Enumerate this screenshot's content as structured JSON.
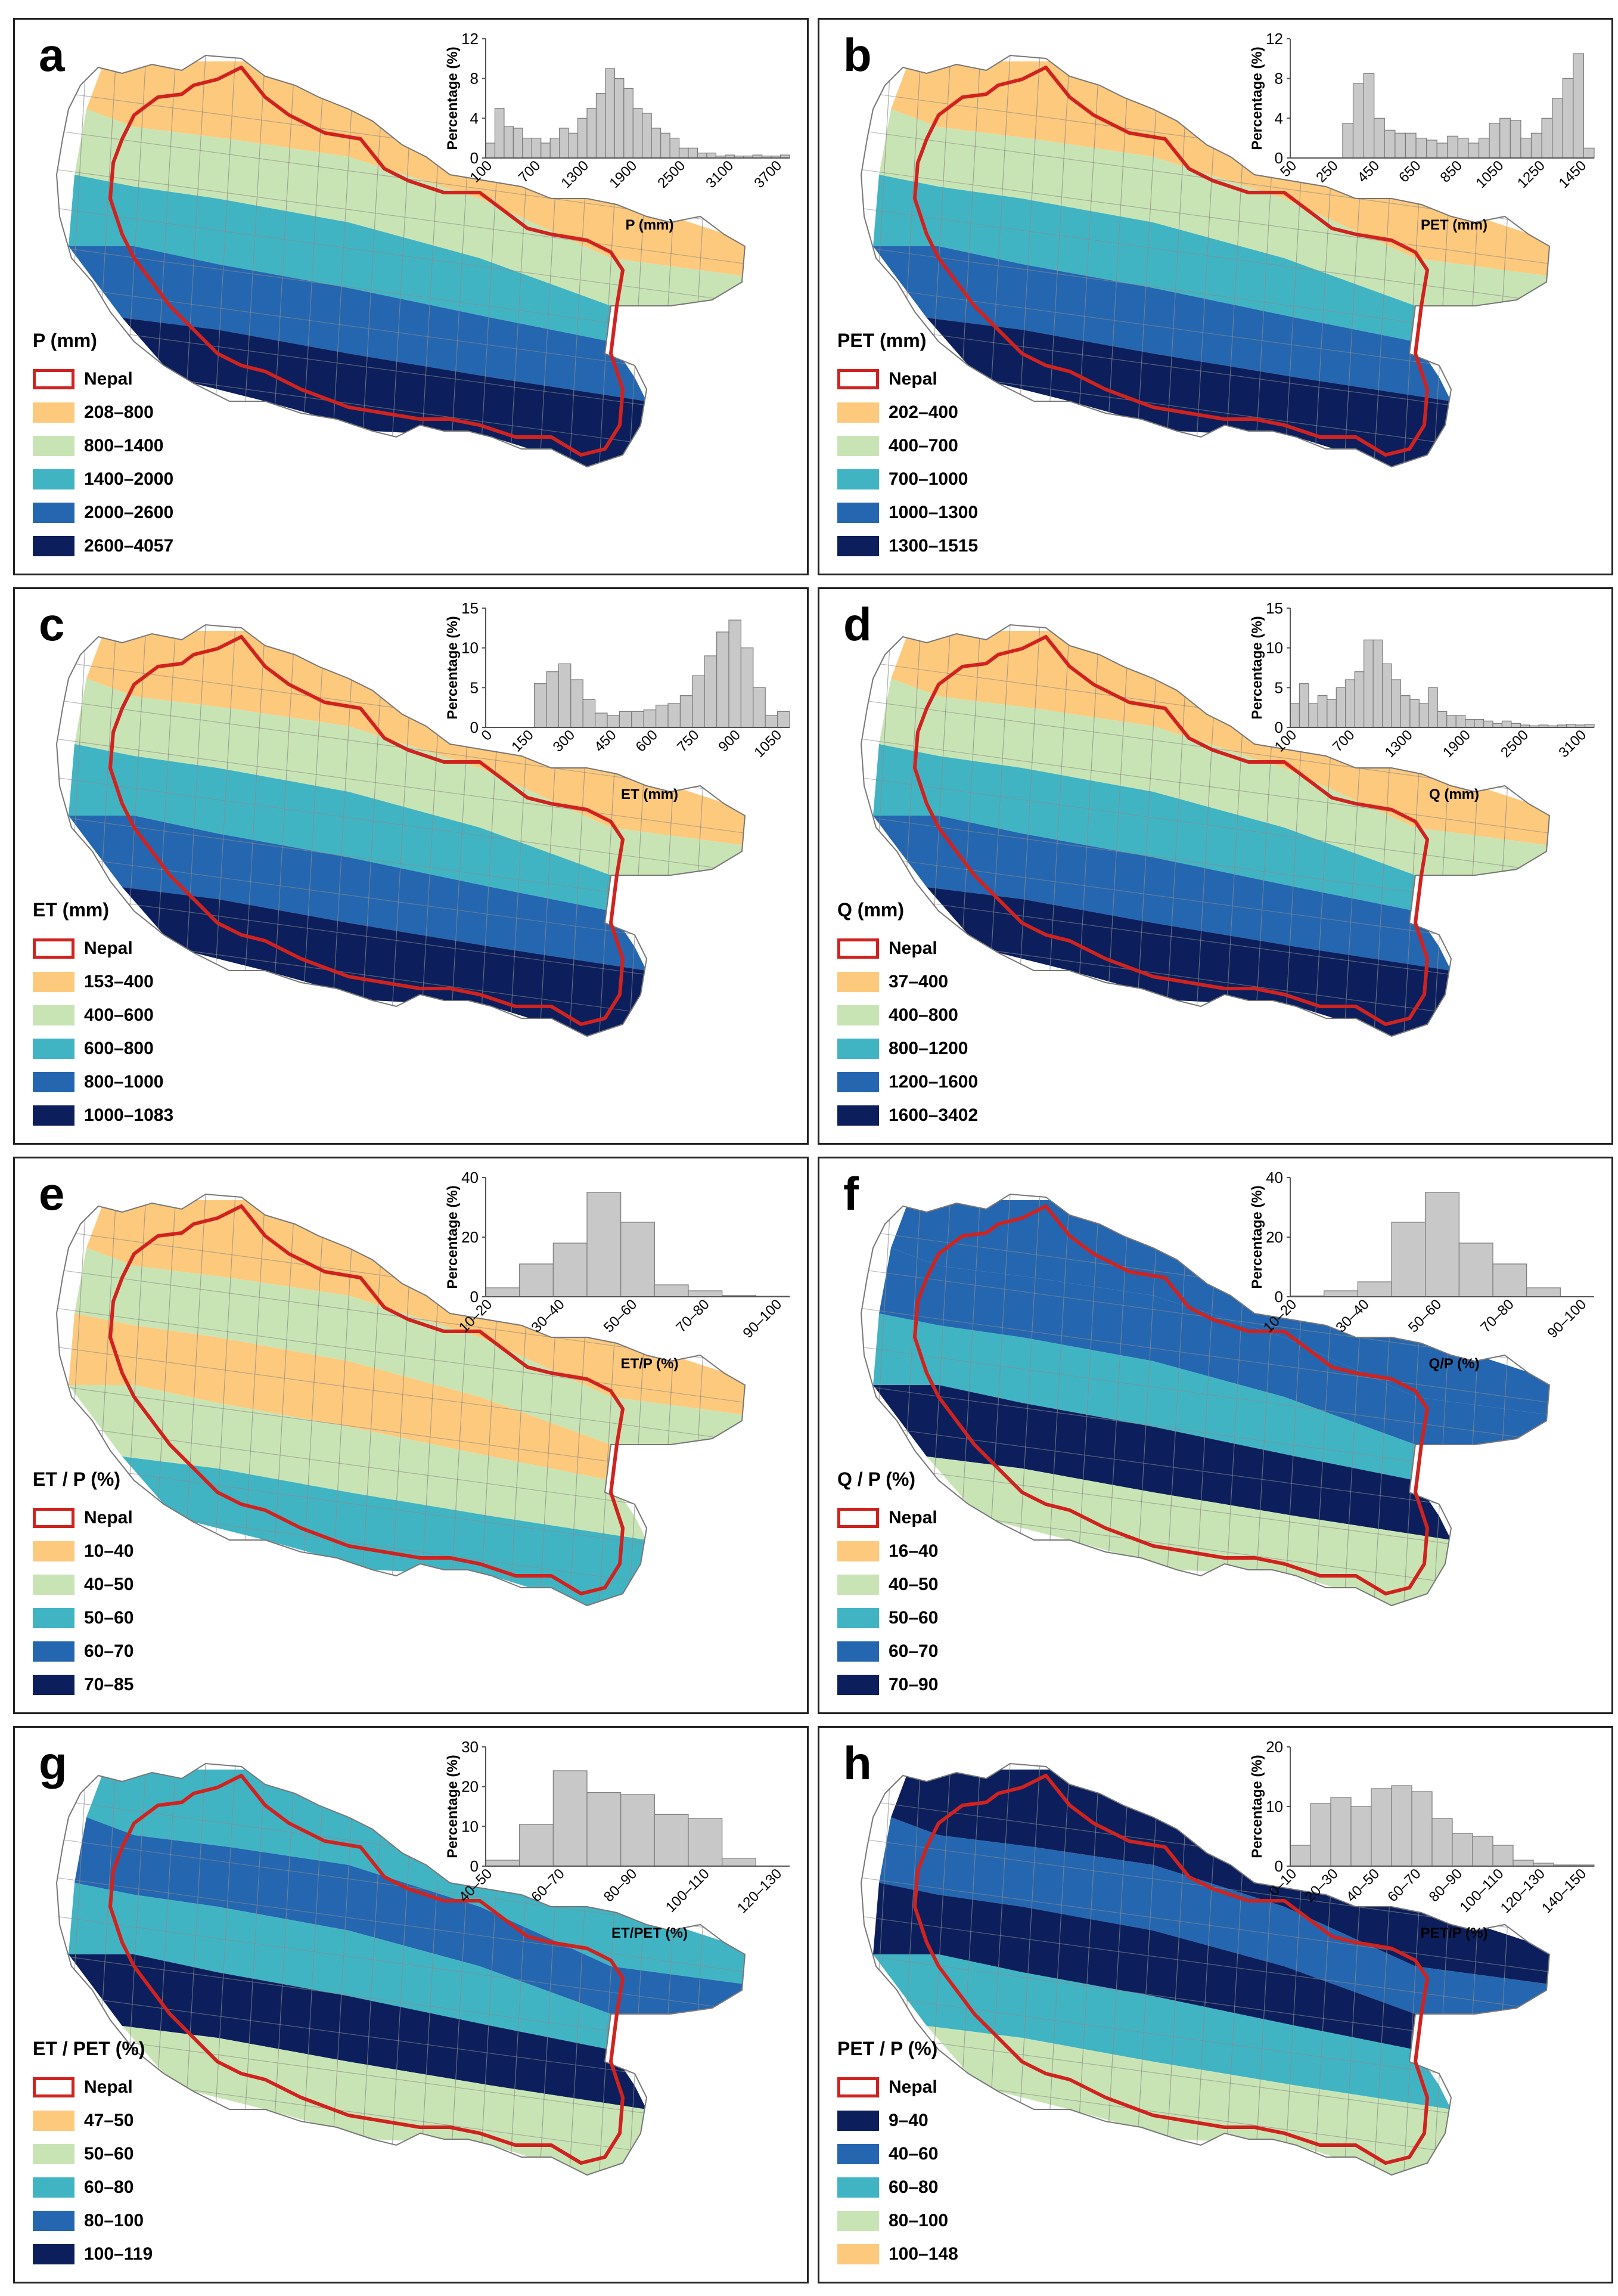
{
  "colors": {
    "border_red": "#d0231f",
    "bar_fill": "#c8c8c8",
    "bar_stroke": "#7a7a7a"
  },
  "panels": [
    {
      "letter": "a",
      "legend_title": "P (mm)",
      "legend": [
        {
          "label": "Nepal",
          "outline": true
        },
        {
          "label": "208–800",
          "color": "#fdc97d"
        },
        {
          "label": "800–1400",
          "color": "#c9e4b4"
        },
        {
          "label": "1400–2000",
          "color": "#41b4c4"
        },
        {
          "label": "2000–2600",
          "color": "#2566b0"
        },
        {
          "label": "2600–4057",
          "color": "#0c1f5c"
        }
      ],
      "palette": [
        "#fdc97d",
        "#c9e4b4",
        "#41b4c4",
        "#2566b0",
        "#0c1f5c"
      ],
      "bands": [
        0,
        1,
        2,
        3,
        4
      ],
      "chart_data": {
        "type": "bar",
        "xlabel": "P (mm)",
        "ylabel": "Percentage (%)",
        "ylim": [
          0,
          12
        ],
        "yticks": [
          0,
          4,
          8,
          12
        ],
        "tick_labels": [
          "100",
          "700",
          "1300",
          "1900",
          "2500",
          "3100",
          "3700"
        ],
        "values": [
          1.5,
          5,
          3.2,
          3,
          2,
          2,
          1.5,
          2,
          3,
          2.5,
          4,
          5,
          6.5,
          9,
          8,
          7,
          5,
          4.5,
          3,
          2.5,
          2,
          1,
          1,
          0.5,
          0.5,
          0.2,
          0.3,
          0.2,
          0.2,
          0.3,
          0.2,
          0.2,
          0.3
        ]
      }
    },
    {
      "letter": "b",
      "legend_title": "PET (mm)",
      "legend": [
        {
          "label": "Nepal",
          "outline": true
        },
        {
          "label": "202–400",
          "color": "#fdc97d"
        },
        {
          "label": "400–700",
          "color": "#c9e4b4"
        },
        {
          "label": "700–1000",
          "color": "#41b4c4"
        },
        {
          "label": "1000–1300",
          "color": "#2566b0"
        },
        {
          "label": "1300–1515",
          "color": "#0c1f5c"
        }
      ],
      "palette": [
        "#fdc97d",
        "#c9e4b4",
        "#41b4c4",
        "#2566b0",
        "#0c1f5c"
      ],
      "bands": [
        0,
        1,
        2,
        3,
        4
      ],
      "chart_data": {
        "type": "bar",
        "xlabel": "PET (mm)",
        "ylabel": "Percentage (%)",
        "ylim": [
          0,
          12
        ],
        "yticks": [
          0,
          4,
          8,
          12
        ],
        "tick_labels": [
          "50",
          "250",
          "450",
          "650",
          "850",
          "1050",
          "1250",
          "1450"
        ],
        "values": [
          0,
          0,
          0,
          0,
          0,
          3.5,
          7.5,
          8.5,
          4,
          2.8,
          2.5,
          2.5,
          2,
          1.8,
          1.5,
          2.2,
          2,
          1.5,
          2,
          3.5,
          4,
          3.8,
          2,
          2.5,
          4,
          6,
          8,
          10.5,
          1
        ]
      }
    },
    {
      "letter": "c",
      "legend_title": "ET (mm)",
      "legend": [
        {
          "label": "Nepal",
          "outline": true
        },
        {
          "label": "153–400",
          "color": "#fdc97d"
        },
        {
          "label": "400–600",
          "color": "#c9e4b4"
        },
        {
          "label": "600–800",
          "color": "#41b4c4"
        },
        {
          "label": "800–1000",
          "color": "#2566b0"
        },
        {
          "label": "1000–1083",
          "color": "#0c1f5c"
        }
      ],
      "palette": [
        "#fdc97d",
        "#c9e4b4",
        "#41b4c4",
        "#2566b0",
        "#0c1f5c"
      ],
      "bands": [
        0,
        1,
        2,
        3,
        4
      ],
      "chart_data": {
        "type": "bar",
        "xlabel": "ET (mm)",
        "ylabel": "Percentage (%)",
        "ylim": [
          0,
          15
        ],
        "yticks": [
          0,
          5,
          10,
          15
        ],
        "tick_labels": [
          "0",
          "150",
          "300",
          "450",
          "600",
          "750",
          "900",
          "1050"
        ],
        "values": [
          0,
          0,
          0,
          0,
          5.5,
          7,
          8,
          6,
          3.5,
          1.8,
          1.5,
          2,
          2,
          2.2,
          2.8,
          3,
          4,
          6.5,
          9,
          12,
          13.5,
          10,
          5,
          1.5,
          2
        ]
      }
    },
    {
      "letter": "d",
      "legend_title": "Q (mm)",
      "legend": [
        {
          "label": "Nepal",
          "outline": true
        },
        {
          "label": "37–400",
          "color": "#fdc97d"
        },
        {
          "label": "400–800",
          "color": "#c9e4b4"
        },
        {
          "label": "800–1200",
          "color": "#41b4c4"
        },
        {
          "label": "1200–1600",
          "color": "#2566b0"
        },
        {
          "label": "1600–3402",
          "color": "#0c1f5c"
        }
      ],
      "palette": [
        "#fdc97d",
        "#c9e4b4",
        "#41b4c4",
        "#2566b0",
        "#0c1f5c"
      ],
      "bands": [
        0,
        1,
        2,
        3,
        4
      ],
      "chart_data": {
        "type": "bar",
        "xlabel": "Q (mm)",
        "ylabel": "Percentage (%)",
        "ylim": [
          0,
          15
        ],
        "yticks": [
          0,
          5,
          10,
          15
        ],
        "tick_labels": [
          "100",
          "700",
          "1300",
          "1900",
          "2500",
          "3100"
        ],
        "values": [
          3,
          5.5,
          3,
          4,
          3.5,
          5,
          6,
          7,
          11,
          11,
          8,
          6,
          4,
          3.5,
          3,
          5,
          2,
          1.5,
          1.5,
          1,
          1,
          0.8,
          0.5,
          0.8,
          0.5,
          0.3,
          0.2,
          0.3,
          0.2,
          0.3,
          0.4,
          0.3,
          0.4
        ]
      }
    },
    {
      "letter": "e",
      "legend_title": "ET / P (%)",
      "legend": [
        {
          "label": "Nepal",
          "outline": true
        },
        {
          "label": "10–40",
          "color": "#fdc97d"
        },
        {
          "label": "40–50",
          "color": "#c9e4b4"
        },
        {
          "label": "50–60",
          "color": "#41b4c4"
        },
        {
          "label": "60–70",
          "color": "#2566b0"
        },
        {
          "label": "70–85",
          "color": "#0c1f5c"
        }
      ],
      "palette": [
        "#fdc97d",
        "#c9e4b4",
        "#41b4c4",
        "#2566b0",
        "#0c1f5c"
      ],
      "bands": [
        0,
        1,
        0,
        1,
        2
      ],
      "chart_data": {
        "type": "bar",
        "xlabel": "ET/P (%)",
        "ylabel": "Percentage (%)",
        "ylim": [
          0,
          40
        ],
        "yticks": [
          0,
          20,
          40
        ],
        "tick_labels": [
          "10–20",
          "30–40",
          "50–60",
          "70–80",
          "90–100"
        ],
        "values": [
          3,
          11,
          18,
          35,
          25,
          4,
          2,
          0.5,
          0.2
        ]
      }
    },
    {
      "letter": "f",
      "legend_title": "Q / P (%)",
      "legend": [
        {
          "label": "Nepal",
          "outline": true
        },
        {
          "label": "16–40",
          "color": "#fdc97d"
        },
        {
          "label": "40–50",
          "color": "#c9e4b4"
        },
        {
          "label": "50–60",
          "color": "#41b4c4"
        },
        {
          "label": "60–70",
          "color": "#2566b0"
        },
        {
          "label": "70–90",
          "color": "#0c1f5c"
        }
      ],
      "palette": [
        "#fdc97d",
        "#c9e4b4",
        "#41b4c4",
        "#2566b0",
        "#0c1f5c"
      ],
      "bands": [
        3,
        3,
        2,
        4,
        1
      ],
      "chart_data": {
        "type": "bar",
        "xlabel": "Q/P (%)",
        "ylabel": "Percentage (%)",
        "ylim": [
          0,
          40
        ],
        "yticks": [
          0,
          20,
          40
        ],
        "tick_labels": [
          "10–20",
          "30–40",
          "50–60",
          "70–80",
          "90–100"
        ],
        "values": [
          0.3,
          2,
          5,
          25,
          35,
          18,
          11,
          3,
          0
        ]
      }
    },
    {
      "letter": "g",
      "legend_title": "ET / PET (%)",
      "legend": [
        {
          "label": "Nepal",
          "outline": true
        },
        {
          "label": "47–50",
          "color": "#fdc97d"
        },
        {
          "label": "50–60",
          "color": "#c9e4b4"
        },
        {
          "label": "60–80",
          "color": "#41b4c4"
        },
        {
          "label": "80–100",
          "color": "#2566b0"
        },
        {
          "label": "100–119",
          "color": "#0c1f5c"
        }
      ],
      "palette": [
        "#fdc97d",
        "#c9e4b4",
        "#41b4c4",
        "#2566b0",
        "#0c1f5c"
      ],
      "bands": [
        2,
        3,
        2,
        4,
        1
      ],
      "chart_data": {
        "type": "bar",
        "xlabel": "ET/PET (%)",
        "ylabel": "Percentage (%)",
        "ylim": [
          0,
          30
        ],
        "yticks": [
          0,
          10,
          20,
          30
        ],
        "tick_labels": [
          "40–50",
          "60–70",
          "80–90",
          "100–110",
          "120–130"
        ],
        "values": [
          1.5,
          10.5,
          24,
          18.5,
          18,
          13,
          12,
          2,
          0
        ]
      }
    },
    {
      "letter": "h",
      "legend_title": "PET / P (%)",
      "legend": [
        {
          "label": "Nepal",
          "outline": true
        },
        {
          "label": "9–40",
          "color": "#0c1f5c"
        },
        {
          "label": "40–60",
          "color": "#2566b0"
        },
        {
          "label": "60–80",
          "color": "#41b4c4"
        },
        {
          "label": "80–100",
          "color": "#c9e4b4"
        },
        {
          "label": "100–148",
          "color": "#fdc97d"
        }
      ],
      "palette": [
        "#0c1f5c",
        "#2566b0",
        "#41b4c4",
        "#c9e4b4",
        "#fdc97d"
      ],
      "bands": [
        0,
        1,
        0,
        2,
        3
      ],
      "chart_data": {
        "type": "bar",
        "xlabel": "PET/P (%)",
        "ylabel": "Percentage (%)",
        "ylim": [
          0,
          20
        ],
        "yticks": [
          0,
          10,
          20
        ],
        "tick_labels": [
          "0–10",
          "20–30",
          "40–50",
          "60–70",
          "80–90",
          "100–110",
          "120–130",
          "140–150"
        ],
        "values": [
          3.5,
          10.5,
          11.5,
          10,
          13,
          13.5,
          12.5,
          8,
          5.5,
          5,
          3.5,
          1,
          0.5,
          0.2,
          0.2
        ]
      }
    }
  ]
}
